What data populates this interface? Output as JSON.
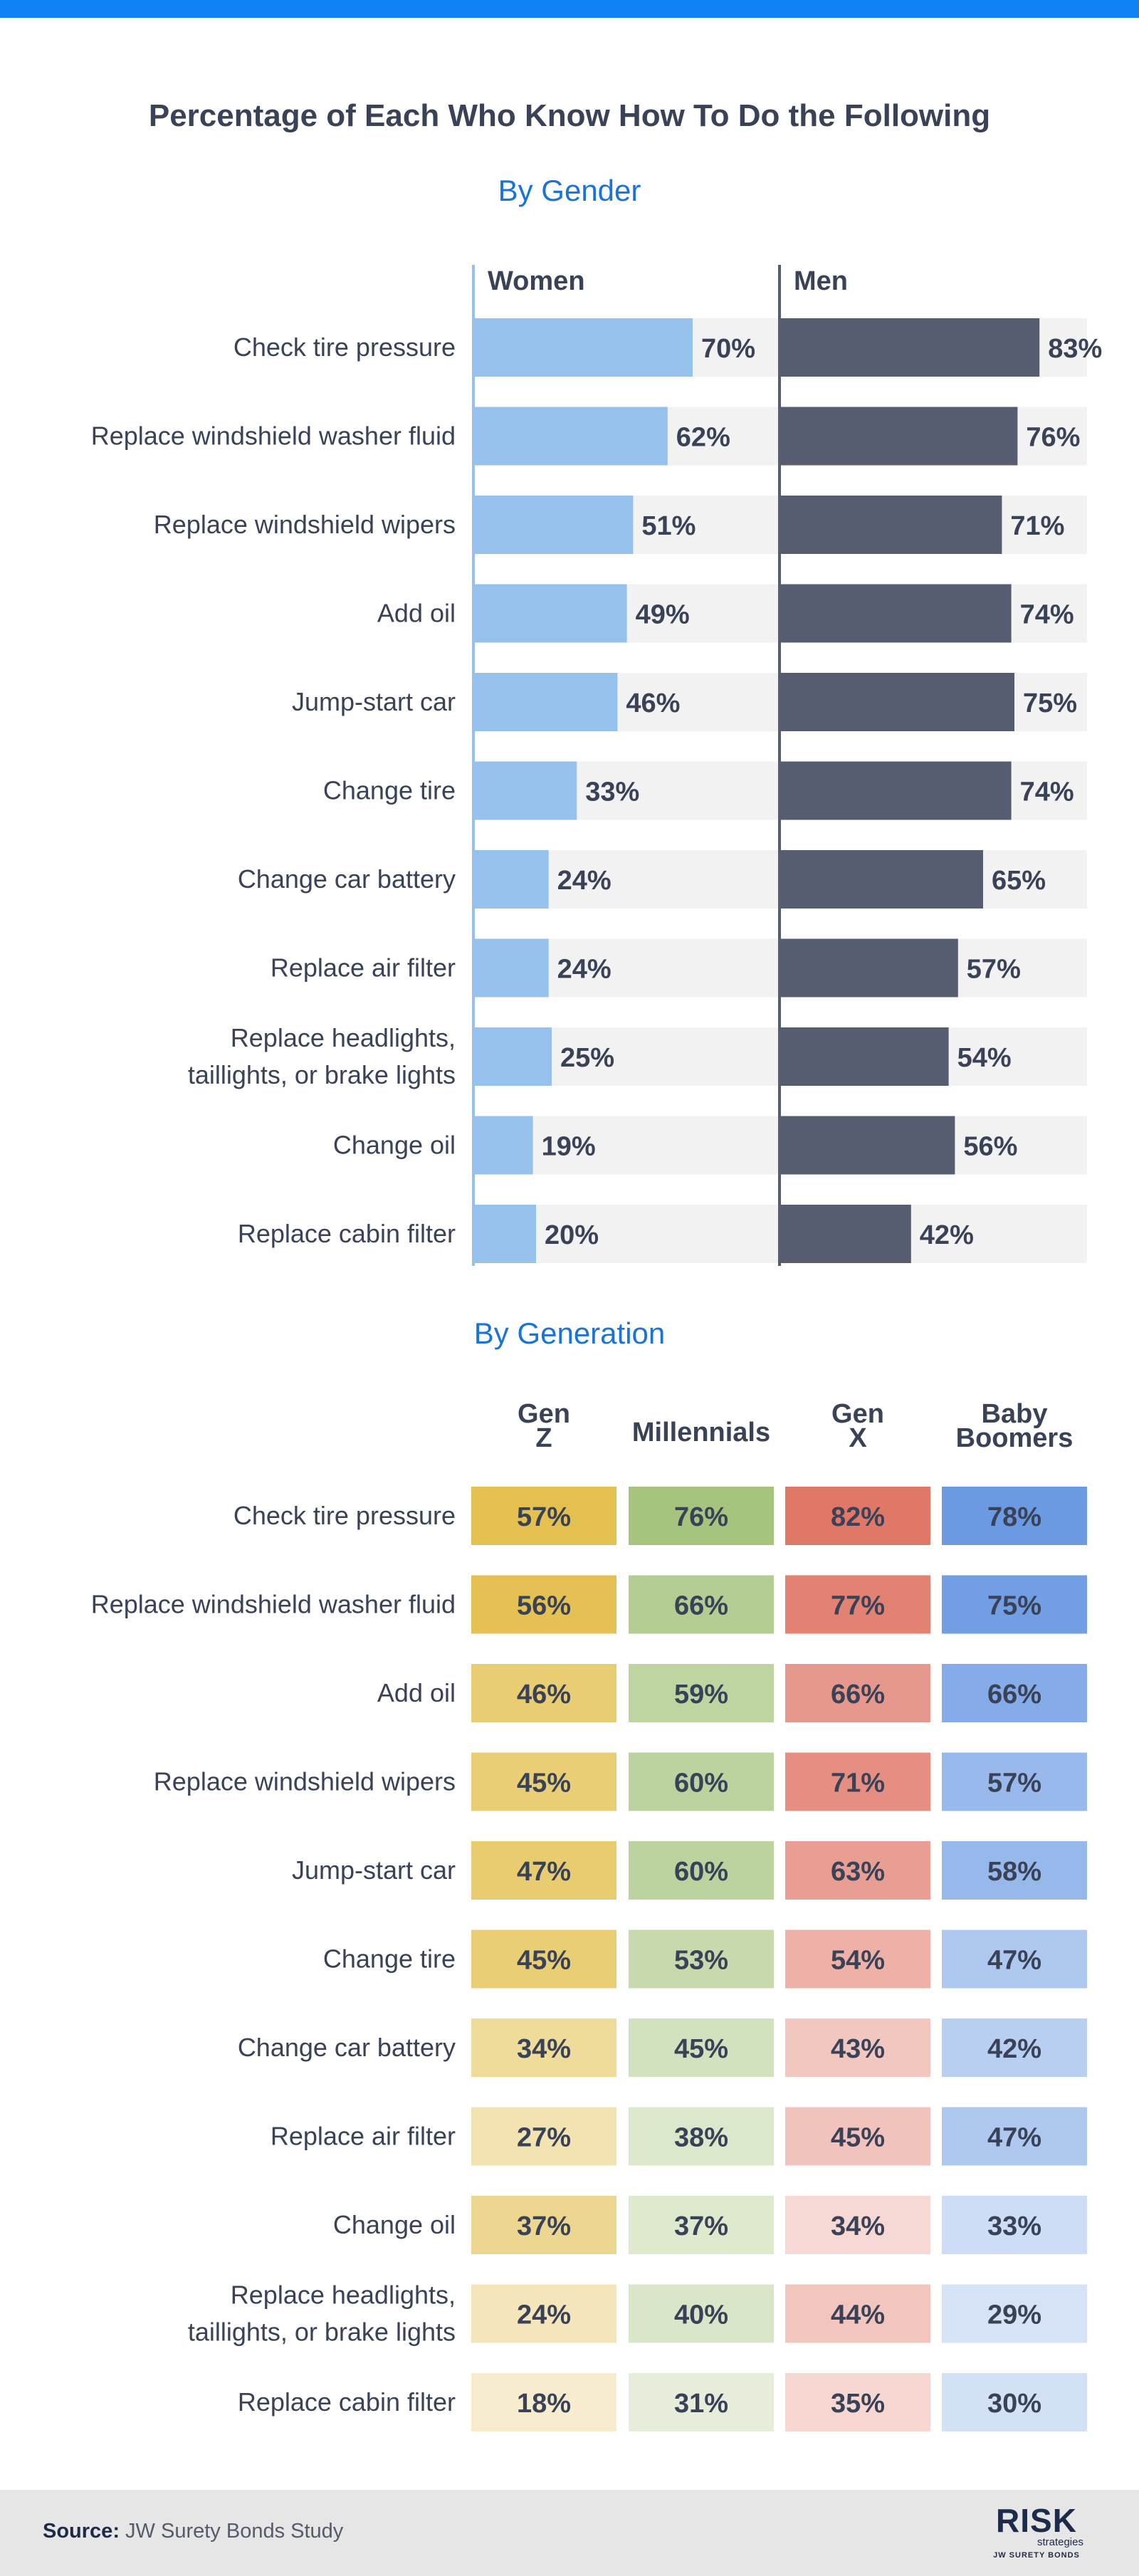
{
  "title": "Percentage of Each Who Know How To Do the Following",
  "footer": {
    "source_label": "Source:",
    "source_text": "JW Surety Bonds Study",
    "logo_main": "RISK",
    "logo_sub": "strategies",
    "logo_foot": "JW SURETY BONDS"
  },
  "colors": {
    "women": "#95c1ec",
    "men": "#565d71",
    "track": "#f2f2f2",
    "label_text": "#3a4257",
    "accent": "#1a73d9",
    "gen_z": "#e3c04f",
    "millennials": "#a6c47e",
    "gen_x": "#e07868",
    "baby_boomers": "#6b9ae3"
  },
  "chart_data": [
    {
      "type": "bar",
      "title": "By Gender",
      "orientation": "horizontal",
      "xlim": [
        0,
        100
      ],
      "categories": [
        "Check tire pressure",
        "Replace windshield washer fluid",
        "Replace windshield wipers",
        "Add oil",
        "Jump-start car",
        "Change tire",
        "Change car battery",
        "Replace air filter",
        "Replace headlights, taillights, or brake lights",
        "Change oil",
        "Replace cabin filter"
      ],
      "series": [
        {
          "name": "Women",
          "values": [
            70,
            62,
            51,
            49,
            46,
            33,
            24,
            24,
            25,
            19,
            20
          ]
        },
        {
          "name": "Men",
          "values": [
            83,
            76,
            71,
            74,
            75,
            74,
            65,
            57,
            54,
            56,
            42
          ]
        }
      ]
    },
    {
      "type": "table",
      "title": "By Generation",
      "columns": [
        "Gen Z",
        "Millennials",
        "Gen X",
        "Baby Boomers"
      ],
      "categories": [
        "Check tire pressure",
        "Replace windshield washer fluid",
        "Add oil",
        "Replace windshield wipers",
        "Jump-start car",
        "Change tire",
        "Change car battery",
        "Replace air filter",
        "Change oil",
        "Replace headlights, taillights, or brake lights",
        "Replace cabin filter"
      ],
      "series": [
        {
          "name": "Gen Z",
          "values": [
            57,
            56,
            46,
            45,
            47,
            45,
            34,
            27,
            37,
            24,
            18
          ]
        },
        {
          "name": "Millennials",
          "values": [
            76,
            66,
            59,
            60,
            60,
            53,
            45,
            38,
            37,
            40,
            31
          ]
        },
        {
          "name": "Gen X",
          "values": [
            82,
            77,
            66,
            71,
            63,
            54,
            43,
            45,
            34,
            44,
            35
          ]
        },
        {
          "name": "Baby Boomers",
          "values": [
            78,
            75,
            66,
            57,
            58,
            47,
            42,
            47,
            33,
            29,
            30
          ]
        }
      ]
    }
  ]
}
